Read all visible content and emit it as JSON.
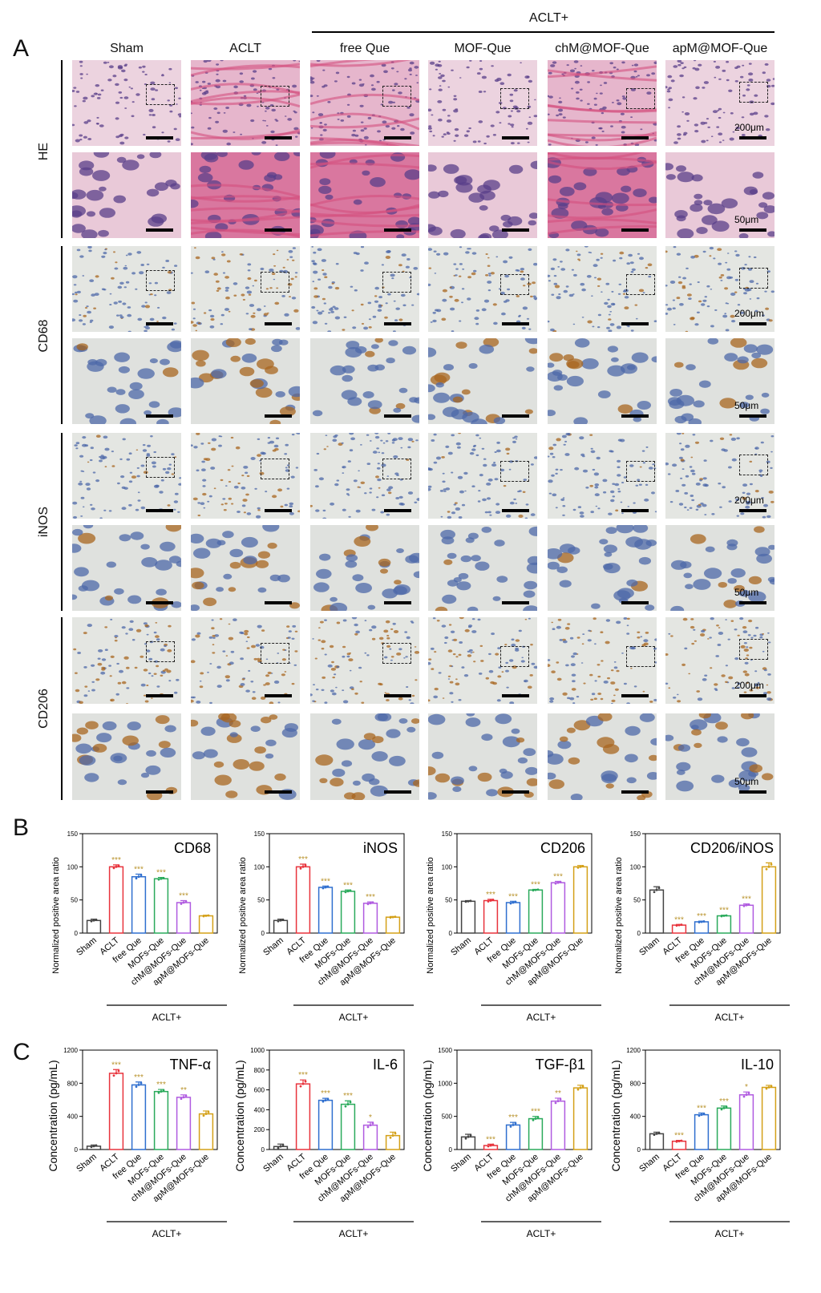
{
  "panel_labels": [
    "A",
    "B",
    "C"
  ],
  "group_header": "ACLT+",
  "columns": [
    "Sham",
    "ACLT",
    "free Que",
    "MOF-Que",
    "chM@MOF-Que",
    "apM@MOF-Que"
  ],
  "rows": [
    "HE",
    "CD68",
    "iNOS",
    "CD206"
  ],
  "scale_low": "200μm",
  "scale_high": "50μm",
  "stain_colors": {
    "HE_low": "#e6b6cc",
    "HE_high": "#d9779f",
    "IHC_low": "#e4e6e2",
    "IHC_high": "#dfe1de",
    "nucleus": "#4d68a8",
    "brown": "#a8661f"
  },
  "series_colors": [
    "#444444",
    "#e8333c",
    "#2f6fcf",
    "#2aaa5b",
    "#b05be0",
    "#d4a017"
  ],
  "sig_color": "#b8922a",
  "chart_data": [
    {
      "type": "bar",
      "panel": "B",
      "title": "CD68",
      "ylabel": "Normalized positive area ratio",
      "ylim": [
        0,
        150
      ],
      "yticks": [
        0,
        50,
        100,
        150
      ],
      "categories": [
        "Sham",
        "ACLT",
        "free Que",
        "MOFs-Que",
        "chM@MOFs-Que",
        "apM@MOFs-Que"
      ],
      "values": [
        19,
        100,
        85,
        82,
        46,
        26
      ],
      "errors": [
        2,
        3,
        4,
        2,
        3,
        1
      ],
      "significance": [
        "",
        "***",
        "***",
        "***",
        "***",
        ""
      ],
      "group_label": "ACLT+"
    },
    {
      "type": "bar",
      "panel": "B",
      "title": "iNOS",
      "ylabel": "Normalized positive area ratio",
      "ylim": [
        0,
        150
      ],
      "yticks": [
        0,
        50,
        100,
        150
      ],
      "categories": [
        "Sham",
        "ACLT",
        "free Que",
        "MOFs-Que",
        "chM@MOFs-Que",
        "apM@MOFs-Que"
      ],
      "values": [
        19,
        100,
        69,
        63,
        45,
        24
      ],
      "errors": [
        2,
        4,
        2,
        2,
        2,
        1
      ],
      "significance": [
        "",
        "***",
        "***",
        "***",
        "***",
        ""
      ],
      "group_label": "ACLT+"
    },
    {
      "type": "bar",
      "panel": "B",
      "title": "CD206",
      "ylabel": "Normalized positive area ratio",
      "ylim": [
        0,
        150
      ],
      "yticks": [
        0,
        50,
        100,
        150
      ],
      "categories": [
        "Sham",
        "ACLT",
        "free Que",
        "MOFs-Que",
        "chM@MOFs-Que",
        "apM@MOFs-Que"
      ],
      "values": [
        48,
        49,
        46,
        65,
        76,
        100
      ],
      "errors": [
        1,
        2,
        2,
        1,
        2,
        2
      ],
      "significance": [
        "",
        "***",
        "***",
        "***",
        "***",
        ""
      ],
      "group_label": "ACLT+"
    },
    {
      "type": "bar",
      "panel": "B",
      "title": "CD206/iNOS",
      "ylabel": "Normalized positive area ratio",
      "ylim": [
        0,
        150
      ],
      "yticks": [
        0,
        50,
        100,
        150
      ],
      "categories": [
        "Sham",
        "ACLT",
        "free Que",
        "MOFs-Que",
        "chM@MOFs-Que",
        "apM@MOFs-Que"
      ],
      "values": [
        65,
        12,
        17,
        26,
        42,
        100
      ],
      "errors": [
        5,
        1,
        1,
        1,
        2,
        6
      ],
      "significance": [
        "",
        "***",
        "***",
        "***",
        "***",
        ""
      ],
      "group_label": "ACLT+"
    },
    {
      "type": "bar",
      "panel": "C",
      "title": "TNF-α",
      "ylabel": "Concentration (pg/mL)",
      "ylim": [
        0,
        1200
      ],
      "yticks": [
        0,
        400,
        800,
        1200
      ],
      "categories": [
        "Sham",
        "ACLT",
        "free Que",
        "MOFs-Que",
        "chM@MOFs-Que",
        "apM@MOFs-Que"
      ],
      "values": [
        40,
        920,
        780,
        700,
        630,
        430
      ],
      "errors": [
        15,
        45,
        35,
        25,
        30,
        35
      ],
      "significance": [
        "",
        "***",
        "***",
        "***",
        "**",
        ""
      ],
      "group_label": "ACLT+"
    },
    {
      "type": "bar",
      "panel": "C",
      "title": "IL-6",
      "ylabel": "Concentration (pg/mL)",
      "ylim": [
        0,
        1000
      ],
      "yticks": [
        0,
        200,
        400,
        600,
        800,
        1000
      ],
      "categories": [
        "Sham",
        "ACLT",
        "free Que",
        "MOFs-Que",
        "chM@MOFs-Que",
        "apM@MOFs-Que"
      ],
      "values": [
        30,
        660,
        495,
        455,
        245,
        140
      ],
      "errors": [
        25,
        40,
        20,
        35,
        30,
        35
      ],
      "significance": [
        "",
        "***",
        "***",
        "***",
        "*",
        ""
      ],
      "group_label": "ACLT+"
    },
    {
      "type": "bar",
      "panel": "C",
      "title": "TGF-β1",
      "ylabel": "Concentration (pg/mL)",
      "ylim": [
        0,
        1500
      ],
      "yticks": [
        0,
        500,
        1000,
        1500
      ],
      "categories": [
        "Sham",
        "ACLT",
        "free Que",
        "MOFs-Que",
        "chM@MOFs-Que",
        "apM@MOFs-Que"
      ],
      "values": [
        190,
        60,
        370,
        465,
        730,
        930
      ],
      "errors": [
        40,
        20,
        40,
        35,
        45,
        40
      ],
      "significance": [
        "",
        "***",
        "***",
        "***",
        "**",
        ""
      ],
      "group_label": "ACLT+"
    },
    {
      "type": "bar",
      "panel": "C",
      "title": "IL-10",
      "ylabel": "Concentration (pg/mL)",
      "ylim": [
        0,
        1200
      ],
      "yticks": [
        0,
        400,
        800,
        1200
      ],
      "categories": [
        "Sham",
        "ACLT",
        "free Que",
        "MOFs-Que",
        "chM@MOFs-Que",
        "apM@MOFs-Que"
      ],
      "values": [
        190,
        100,
        420,
        500,
        660,
        750
      ],
      "errors": [
        20,
        10,
        20,
        25,
        35,
        25
      ],
      "significance": [
        "",
        "***",
        "***",
        "***",
        "*",
        ""
      ],
      "group_label": "ACLT+"
    }
  ]
}
